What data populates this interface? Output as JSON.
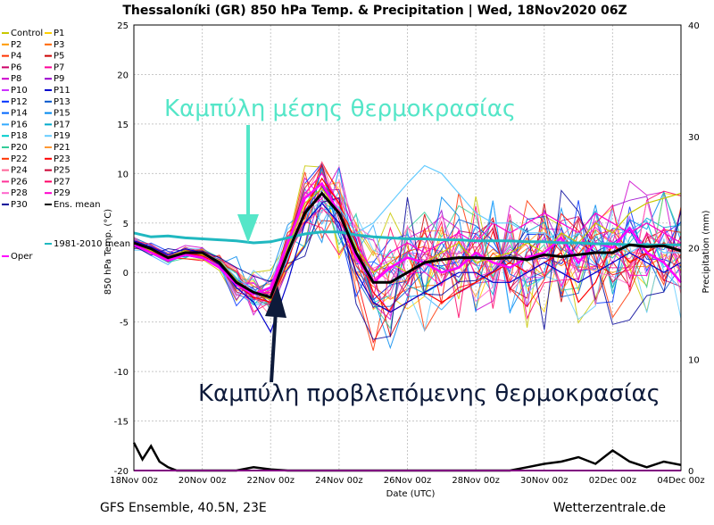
{
  "chart_data": {
    "type": "line",
    "title": "Thessaloníki  (GR)  850 hPa Temp. & Precipitation | Wed, 18Nov2020 06Z",
    "xlabel": "Date (UTC)",
    "ylabel": "850 hPa Temp. (°C)",
    "y2label": "Precipitation (mm)",
    "ylim": [
      -20,
      25
    ],
    "y2lim": [
      0,
      40
    ],
    "yticks": [
      25,
      20,
      15,
      10,
      5,
      0,
      -5,
      -10,
      -15,
      -20
    ],
    "y2ticks": [
      40,
      30,
      20,
      10,
      0
    ],
    "x_tick_labels": [
      "18Nov 00z",
      "20Nov 00z",
      "22Nov 00z",
      "24Nov 00z",
      "26Nov 00z",
      "28Nov 00z",
      "30Nov 00z",
      "02Dec 00z",
      "04Dec 00z"
    ],
    "xlim_days": [
      0,
      16
    ],
    "grid": true,
    "legend_entries": [
      {
        "name": "Control",
        "color": "#c8c800"
      },
      {
        "name": "P1",
        "color": "#ffd000"
      },
      {
        "name": "P2",
        "color": "#ff9900"
      },
      {
        "name": "P3",
        "color": "#ff6600"
      },
      {
        "name": "P4",
        "color": "#ff3300"
      },
      {
        "name": "P5",
        "color": "#cc0000"
      },
      {
        "name": "P6",
        "color": "#cc0066"
      },
      {
        "name": "P7",
        "color": "#ff0099"
      },
      {
        "name": "P8",
        "color": "#cc00cc"
      },
      {
        "name": "P9",
        "color": "#9900cc"
      },
      {
        "name": "P10",
        "color": "#cc33ff"
      },
      {
        "name": "P11",
        "color": "#0000cc"
      },
      {
        "name": "P12",
        "color": "#0033ff"
      },
      {
        "name": "P13",
        "color": "#0055cc"
      },
      {
        "name": "P14",
        "color": "#0066ff"
      },
      {
        "name": "P15",
        "color": "#0088ee"
      },
      {
        "name": "P16",
        "color": "#33aaff"
      },
      {
        "name": "P17",
        "color": "#00aacc"
      },
      {
        "name": "P18",
        "color": "#00cccc"
      },
      {
        "name": "P19",
        "color": "#66ccff"
      },
      {
        "name": "P20",
        "color": "#33cc99"
      },
      {
        "name": "P21",
        "color": "#ff9933"
      },
      {
        "name": "P22",
        "color": "#ff3300"
      },
      {
        "name": "P23",
        "color": "#ff0000"
      },
      {
        "name": "P24",
        "color": "#ff6699"
      },
      {
        "name": "P25",
        "color": "#cc0033"
      },
      {
        "name": "P26",
        "color": "#ff3399"
      },
      {
        "name": "P27",
        "color": "#ff0066"
      },
      {
        "name": "P28",
        "color": "#ff66cc"
      },
      {
        "name": "P29",
        "color": "#ff00cc"
      },
      {
        "name": "P30",
        "color": "#000099"
      },
      {
        "name": "Ens. mean",
        "color": "#000000"
      },
      {
        "name": "1981-2010 mean",
        "color": "#20b8c0"
      },
      {
        "name": "Oper",
        "color": "#ff00ff"
      }
    ],
    "series": [
      {
        "name": "Ens. mean",
        "color": "#000000",
        "x": [
          0,
          0.5,
          1,
          1.5,
          2,
          2.5,
          3,
          3.5,
          4,
          4.5,
          5,
          5.5,
          6,
          6.5,
          7,
          7.5,
          8,
          8.5,
          9,
          9.5,
          10,
          10.5,
          11,
          11.5,
          12,
          12.5,
          13,
          13.5,
          14,
          14.5,
          15,
          15.5,
          16
        ],
        "y": [
          3,
          2.4,
          1.5,
          2,
          2,
          1,
          -1,
          -2,
          -2.5,
          2,
          6,
          8,
          6,
          2,
          -1,
          -1,
          0,
          1,
          1.3,
          1.5,
          1.5,
          1.4,
          1.5,
          1.3,
          1.8,
          1.6,
          1.8,
          2,
          2,
          2.8,
          2.6,
          2.7,
          2.2
        ]
      },
      {
        "name": "1981-2010 mean",
        "color": "#20b8c0",
        "x": [
          0,
          0.5,
          1,
          1.5,
          2,
          2.5,
          3,
          3.5,
          4,
          4.5,
          5,
          5.5,
          6,
          6.5,
          7,
          7.5,
          8,
          8.5,
          9,
          9.5,
          10,
          10.5,
          11,
          11.5,
          12,
          12.5,
          13,
          13.5,
          14,
          14.5,
          15,
          15.5,
          16
        ],
        "y": [
          4,
          3.6,
          3.7,
          3.5,
          3.4,
          3.3,
          3.2,
          3,
          3.1,
          3.5,
          3.9,
          4.1,
          4.1,
          3.8,
          3.6,
          3.5,
          3.4,
          3.4,
          3.3,
          3.3,
          3.2,
          3.2,
          3.2,
          3.1,
          3.1,
          3,
          3,
          2.9,
          2.9,
          2.8,
          2.8,
          2.8,
          2.8
        ]
      },
      {
        "name": "Oper",
        "color": "#ff00ff",
        "x": [
          0,
          0.5,
          1,
          1.5,
          2,
          2.5,
          3,
          3.5,
          4,
          4.5,
          5,
          5.5,
          6,
          6.5,
          7,
          7.5,
          8,
          8.5,
          9,
          9.5,
          10,
          10.5,
          11,
          11.5,
          12,
          12.5,
          13,
          13.5,
          14,
          14.5,
          15,
          15.5,
          16
        ],
        "y": [
          2.8,
          2,
          1.2,
          1.8,
          1.5,
          0.5,
          -1.2,
          -2.2,
          -1.5,
          3,
          7.5,
          9,
          6,
          1.5,
          -1,
          0.5,
          1.5,
          1,
          0,
          0.5,
          2,
          1,
          0.5,
          1.5,
          2,
          3.5,
          1,
          3,
          2.5,
          4.5,
          2,
          1,
          -1
        ]
      },
      {
        "name": "Control",
        "color": "#c8c800",
        "x": [
          0,
          0.5,
          1,
          1.5,
          2,
          2.5,
          3,
          3.5,
          4,
          4.5,
          5,
          5.5,
          6,
          6.5,
          7,
          7.5,
          8,
          8.5,
          9,
          9.5,
          10,
          10.5,
          11,
          11.5,
          12,
          12.5,
          13,
          13.5,
          14,
          14.5,
          15,
          15.5,
          16
        ],
        "y": [
          3,
          2.2,
          1.6,
          2.2,
          1.8,
          1.2,
          -0.8,
          -2,
          -2.8,
          2.5,
          7,
          8.5,
          6,
          2.5,
          0,
          1,
          0,
          1,
          2,
          3,
          1,
          1.5,
          2,
          3,
          2,
          4,
          3,
          5,
          4,
          6,
          7,
          7.5,
          8
        ]
      },
      {
        "name": "P11",
        "color": "#0000cc",
        "x": [
          0,
          0.5,
          1,
          1.5,
          2,
          2.5,
          3,
          3.5,
          4,
          4.5,
          5,
          5.5,
          6,
          6.5,
          7,
          7.5,
          8,
          8.5,
          9,
          9.5,
          10,
          10.5,
          11,
          11.5,
          12,
          12.5,
          13,
          13.5,
          14,
          14.5,
          15,
          15.5,
          16
        ],
        "y": [
          3.2,
          2.6,
          1.8,
          2.4,
          2,
          0.8,
          -1.5,
          -3,
          -6,
          -1,
          5,
          7,
          5,
          0,
          -3,
          -4,
          -3,
          -2,
          -1,
          0,
          0,
          -1,
          -1,
          0,
          1,
          0,
          -1,
          0,
          1,
          2,
          1,
          0,
          1
        ]
      },
      {
        "name": "P19",
        "color": "#66ccff",
        "x": [
          0,
          0.5,
          1,
          1.5,
          2,
          2.5,
          3,
          3.5,
          4,
          4.5,
          5,
          5.5,
          6,
          6.5,
          7,
          7.5,
          8,
          8.5,
          9,
          9.5,
          10,
          10.5,
          11,
          11.5,
          12,
          12.5,
          13,
          13.5,
          14,
          14.5,
          15,
          15.5,
          16
        ],
        "y": [
          3,
          2.3,
          1.4,
          2,
          2,
          1.2,
          -0.5,
          -1.8,
          -2.5,
          1.5,
          6,
          8,
          6.5,
          4,
          5,
          7,
          9,
          10.8,
          10,
          8,
          6,
          5,
          5,
          4,
          4,
          3,
          4,
          3,
          3,
          2,
          3,
          2,
          2
        ]
      },
      {
        "name": "P23",
        "color": "#ff0000",
        "x": [
          0,
          0.5,
          1,
          1.5,
          2,
          2.5,
          3,
          3.5,
          4,
          4.5,
          5,
          5.5,
          6,
          6.5,
          7,
          7.5,
          8,
          8.5,
          9,
          9.5,
          10,
          10.5,
          11,
          11.5,
          12,
          12.5,
          13,
          13.5,
          14,
          14.5,
          15,
          15.5,
          16
        ],
        "y": [
          2.9,
          2.2,
          1.3,
          1.9,
          1.7,
          0.8,
          -1.2,
          -2.5,
          -3,
          1,
          6.5,
          9.5,
          7,
          3,
          -2,
          -4,
          -3,
          -2,
          -3,
          -2,
          -1,
          0,
          1,
          0,
          1,
          2,
          -3,
          -1,
          3,
          1,
          2,
          3,
          2
        ]
      },
      {
        "name": "P29",
        "color": "#ff00cc",
        "x": [
          0,
          0.5,
          1,
          1.5,
          2,
          2.5,
          3,
          3.5,
          4,
          4.5,
          5,
          5.5,
          6,
          6.5,
          7,
          7.5,
          8,
          8.5,
          9,
          9.5,
          10,
          10.5,
          11,
          11.5,
          12,
          12.5,
          13,
          13.5,
          14,
          14.5,
          15,
          15.5,
          16
        ],
        "y": [
          3.1,
          2.5,
          1.7,
          2.1,
          2.1,
          1.1,
          -0.9,
          -2.1,
          -2,
          2.5,
          8,
          10,
          7,
          3,
          0,
          2,
          3,
          2,
          3,
          4,
          3,
          5,
          4,
          5,
          6,
          5,
          4,
          6,
          5,
          4,
          5,
          4,
          3
        ]
      }
    ],
    "precipitation": {
      "name": "Precipitation (mm)",
      "x": [
        0,
        0.25,
        0.5,
        0.75,
        1,
        1.25,
        1.5,
        1.75,
        2,
        2.5,
        3,
        3.5,
        4,
        4.5,
        5,
        5.5,
        6,
        6.5,
        7,
        7.5,
        8,
        8.5,
        9,
        9.5,
        10,
        10.5,
        11,
        11.5,
        12,
        12.5,
        13,
        13.5,
        14,
        14.5,
        15,
        15.5,
        16
      ],
      "y": [
        2.5,
        1,
        2.2,
        0.8,
        0.3,
        0,
        0,
        0,
        0,
        0,
        0,
        0.3,
        0.1,
        0,
        0,
        0,
        0,
        0,
        0,
        0,
        0,
        0,
        0,
        0,
        0,
        0,
        0,
        0.3,
        0.6,
        0.8,
        1.2,
        0.6,
        1.8,
        0.8,
        0.3,
        0.8,
        0.5
      ]
    }
  },
  "annotations": {
    "mean_curve": "Καμπύλη μέσης θερμοκρασίας",
    "forecast_curve": "Καμπύλη προβλεπόμενης θερμοκρασίας"
  },
  "footer": {
    "left": "GFS Ensemble, 40.5N, 23E",
    "right": "Wetterzentrale.de"
  }
}
